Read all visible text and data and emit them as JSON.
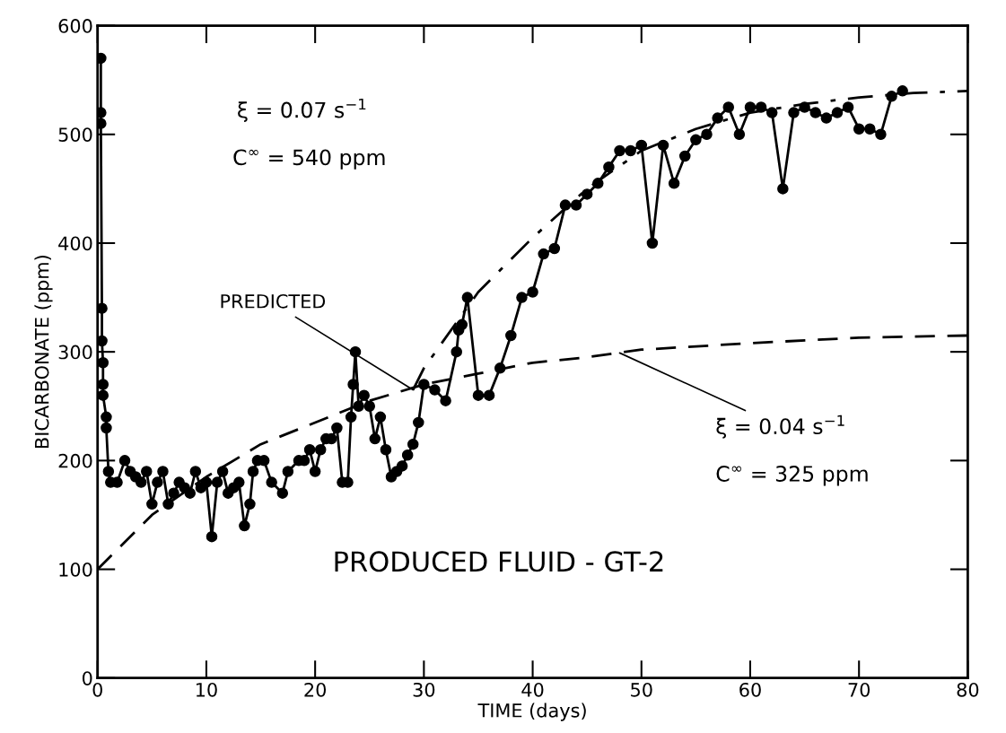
{
  "chart_data": {
    "type": "line",
    "xlabel": "TIME (days)",
    "ylabel": "BICARBONATE (ppm)",
    "xlim": [
      0,
      80
    ],
    "ylim": [
      0,
      600
    ],
    "xticks": [
      0,
      10,
      20,
      30,
      40,
      50,
      60,
      70,
      80
    ],
    "yticks": [
      0,
      100,
      200,
      300,
      400,
      500,
      600
    ],
    "grid": false,
    "legend": false,
    "series": [
      {
        "color": "#000000",
        "marker": "circle",
        "line_style": "solid",
        "x": [
          0.3,
          0.3,
          0.3,
          0.4,
          0.4,
          0.5,
          0.5,
          0.5,
          0.8,
          0.8,
          1,
          1.2,
          1.8,
          2.5,
          3,
          3.5,
          4,
          4.5,
          5,
          5.5,
          6,
          6.5,
          7,
          7.5,
          8,
          8.5,
          9,
          9.5,
          10,
          10.5,
          11,
          11.5,
          12,
          12.5,
          13,
          13.5,
          14,
          14.3,
          14.7,
          15.3,
          16,
          17,
          17.5,
          18.5,
          19,
          19.5,
          20,
          20.5,
          21,
          21.5,
          22,
          22.5,
          23,
          23.3,
          23.5,
          23.7,
          24,
          24.5,
          25,
          25.5,
          26,
          26.5,
          27,
          27.5,
          28,
          28.5,
          29,
          29.5,
          30,
          31,
          32,
          33,
          33.2,
          33.5,
          34,
          35,
          36,
          37,
          38,
          39,
          40,
          41,
          42,
          43,
          44,
          45,
          46,
          47,
          48,
          49,
          50,
          51,
          52,
          53,
          54,
          55,
          56,
          57,
          58,
          59,
          60,
          61,
          62,
          63,
          64,
          65,
          66,
          67,
          68,
          69,
          70,
          71,
          72,
          73,
          74
        ],
        "values": [
          570,
          520,
          510,
          340,
          310,
          290,
          270,
          260,
          240,
          230,
          190,
          180,
          180,
          200,
          190,
          185,
          180,
          190,
          160,
          180,
          190,
          160,
          170,
          180,
          175,
          170,
          190,
          175,
          180,
          130,
          180,
          190,
          170,
          175,
          180,
          140,
          160,
          190,
          200,
          200,
          180,
          170,
          190,
          200,
          200,
          210,
          190,
          210,
          220,
          220,
          230,
          180,
          180,
          240,
          270,
          300,
          250,
          260,
          250,
          220,
          240,
          210,
          185,
          190,
          195,
          205,
          215,
          235,
          270,
          265,
          255,
          300,
          320,
          325,
          350,
          260,
          260,
          285,
          315,
          350,
          355,
          390,
          395,
          435,
          435,
          445,
          455,
          470,
          485,
          485,
          490,
          400,
          490,
          455,
          480,
          495,
          500,
          515,
          525,
          500,
          525,
          525,
          520,
          450,
          520,
          525,
          520,
          515,
          520,
          525,
          505,
          505,
          500,
          535,
          540
        ]
      },
      {
        "color": "#000000",
        "marker": "none",
        "line_style": "dashdot",
        "x": [
          29,
          30,
          35,
          40,
          45,
          50,
          55,
          60,
          65,
          70,
          75,
          80
        ],
        "values": [
          265,
          285,
          355,
          405,
          450,
          485,
          505,
          520,
          528,
          534,
          538,
          540
        ]
      },
      {
        "color": "#000000",
        "marker": "none",
        "line_style": "dashed",
        "x": [
          0,
          5,
          10,
          15,
          20,
          25,
          30,
          35,
          40,
          45,
          50,
          60,
          70,
          80
        ],
        "values": [
          100,
          150,
          185,
          215,
          235,
          255,
          270,
          280,
          290,
          295,
          302,
          308,
          313,
          315
        ]
      }
    ],
    "annotations": [
      "ξ = 0.07 s$^{−1}$",
      "C$^{∞}$ = 540 ppm",
      {
        "text": "PREDICTED",
        "x": 29,
        "y": 265
      },
      {
        "text": "ξ = 0.04 s$^{−1}$",
        "x": 48,
        "y": 299
      },
      "C$^{∞}$ = 325 ppm",
      "PRODUCED FLUID - GT-2"
    ]
  }
}
